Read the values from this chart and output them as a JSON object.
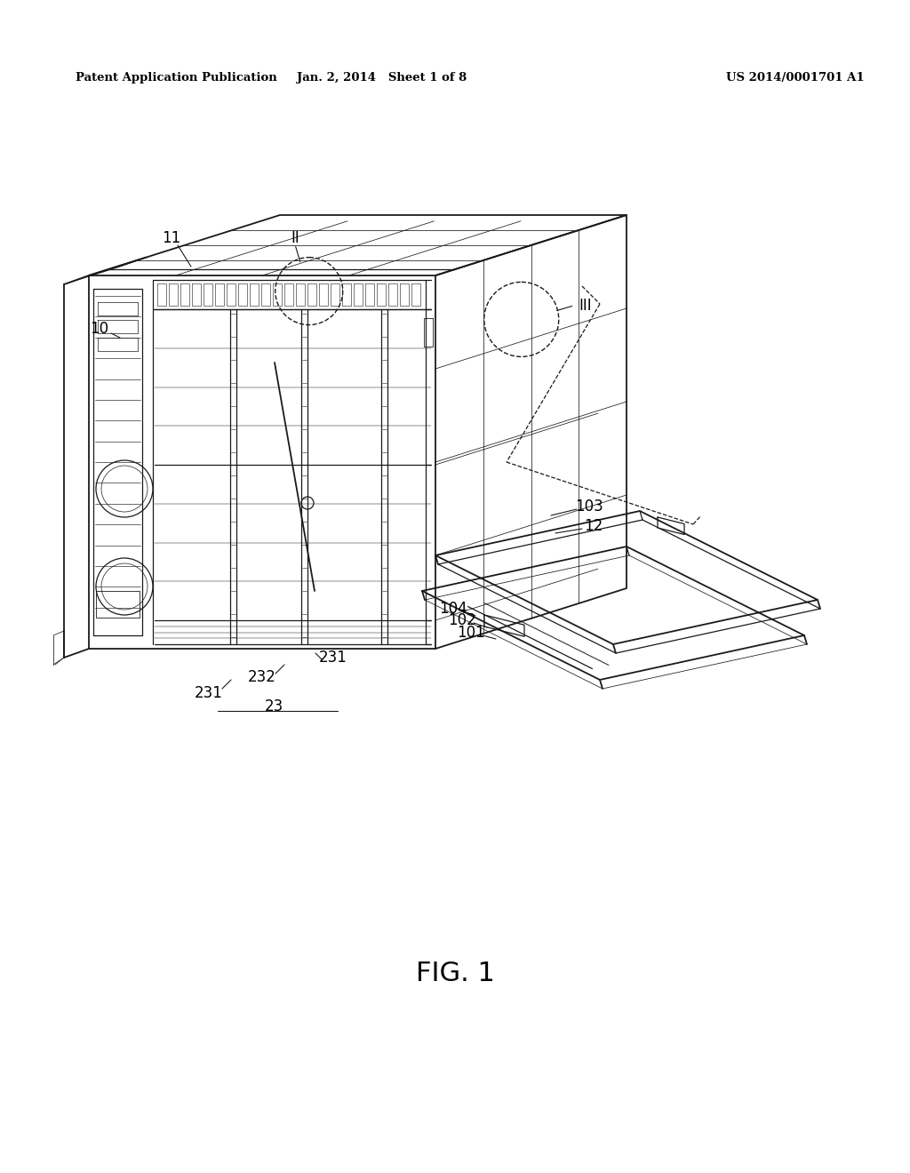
{
  "bg_color": "#ffffff",
  "header_left": "Patent Application Publication",
  "header_mid": "Jan. 2, 2014   Sheet 1 of 8",
  "header_right": "US 2014/0001701 A1",
  "fig_label": "FIG. 1",
  "lc": "#1a1a1a"
}
